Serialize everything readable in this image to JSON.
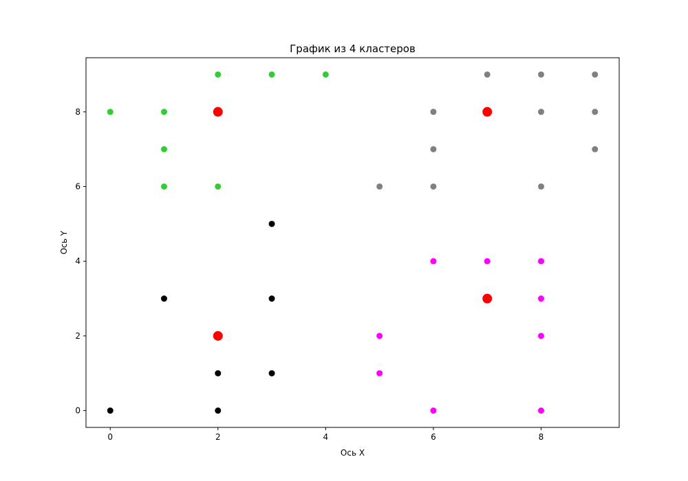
{
  "chart_data": {
    "type": "scatter",
    "title": "График из 4 кластеров",
    "xlabel": "Ось X",
    "ylabel": "Ось Y",
    "xlim": [
      -0.45,
      9.45
    ],
    "ylim": [
      -0.45,
      9.45
    ],
    "xticks": [
      0,
      2,
      4,
      6,
      8
    ],
    "yticks": [
      0,
      2,
      4,
      6,
      8
    ],
    "grid": false,
    "series": [
      {
        "color": "#32cd32",
        "points": [
          [
            0,
            8
          ],
          [
            1,
            8
          ],
          [
            1,
            7
          ],
          [
            1,
            6
          ],
          [
            2,
            9
          ],
          [
            2,
            6
          ],
          [
            3,
            9
          ],
          [
            4,
            9
          ]
        ]
      },
      {
        "color": "#808080",
        "points": [
          [
            5,
            6
          ],
          [
            6,
            8
          ],
          [
            6,
            7
          ],
          [
            6,
            6
          ],
          [
            7,
            9
          ],
          [
            8,
            9
          ],
          [
            8,
            8
          ],
          [
            8,
            6
          ],
          [
            9,
            9
          ],
          [
            9,
            8
          ],
          [
            9,
            7
          ]
        ]
      },
      {
        "color": "#000000",
        "points": [
          [
            0,
            0
          ],
          [
            1,
            3
          ],
          [
            2,
            1
          ],
          [
            2,
            0
          ],
          [
            3,
            5
          ],
          [
            3,
            3
          ],
          [
            3,
            1
          ]
        ]
      },
      {
        "color": "#ff00ff",
        "points": [
          [
            5,
            2
          ],
          [
            5,
            1
          ],
          [
            6,
            4
          ],
          [
            6,
            0
          ],
          [
            7,
            4
          ],
          [
            8,
            4
          ],
          [
            8,
            3
          ],
          [
            8,
            2
          ],
          [
            8,
            0
          ]
        ]
      },
      {
        "color": "#ff0000",
        "marker": "large",
        "points": [
          [
            2,
            8
          ],
          [
            7,
            8
          ],
          [
            2,
            2
          ],
          [
            7,
            3
          ]
        ]
      }
    ]
  }
}
